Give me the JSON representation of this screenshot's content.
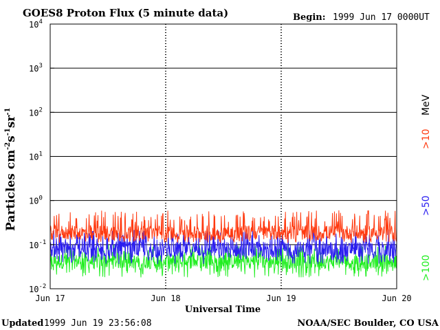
{
  "chart_data": {
    "type": "line",
    "title": "GOES8 Proton Flux (5 minute data)",
    "begin": {
      "label": "Begin:",
      "value": "1999 Jun 17 0000UT"
    },
    "xlabel": "Universal Time",
    "ylabel": {
      "base": "Particles cm",
      "exp1": "-2",
      "mid1": "s",
      "exp2": "-1",
      "mid2": "sr",
      "exp3": "-1"
    },
    "y_scale": "log",
    "ylim": [
      0.01,
      10000
    ],
    "y_ticks": [
      {
        "exp": "-2",
        "value": 0.01
      },
      {
        "exp": "-1",
        "value": 0.1
      },
      {
        "exp": "0",
        "value": 1
      },
      {
        "exp": "1",
        "value": 10
      },
      {
        "exp": "2",
        "value": 100
      },
      {
        "exp": "3",
        "value": 1000
      },
      {
        "exp": "4",
        "value": 10000
      }
    ],
    "x_ticks": [
      {
        "month": "Jun",
        "day": "17"
      },
      {
        "month": "Jun",
        "day": "18"
      },
      {
        "month": "Jun",
        "day": "19"
      },
      {
        "month": "Jun",
        "day": "20"
      }
    ],
    "xlim_days": [
      0,
      3
    ],
    "grid": "horizontal at decades, dashed vertical at day boundaries",
    "legend": {
      "placement": "right",
      "items": [
        {
          "text": ">10",
          "color": "#ff3a10"
        },
        {
          "text": "MeV",
          "color": "#000000"
        },
        {
          "text": ">50",
          "color": "#2a1ef0"
        },
        {
          "text": ">100",
          "color": "#22ee22"
        }
      ]
    },
    "series": [
      {
        "name": ">10 MeV",
        "color": "#ff3a10",
        "baseline": 0.18,
        "range": [
          0.11,
          0.6
        ]
      },
      {
        "name": ">50 MeV",
        "color": "#2a1ef0",
        "baseline": 0.075,
        "range": [
          0.035,
          0.22
        ]
      },
      {
        "name": ">100 MeV",
        "color": "#22ee22",
        "baseline": 0.04,
        "range": [
          0.018,
          0.1
        ]
      }
    ]
  },
  "footer": {
    "updated_label": "Updated",
    "updated_value": "1999 Jun 19 23:56:08",
    "credit": "NOAA/SEC Boulder, CO USA"
  }
}
